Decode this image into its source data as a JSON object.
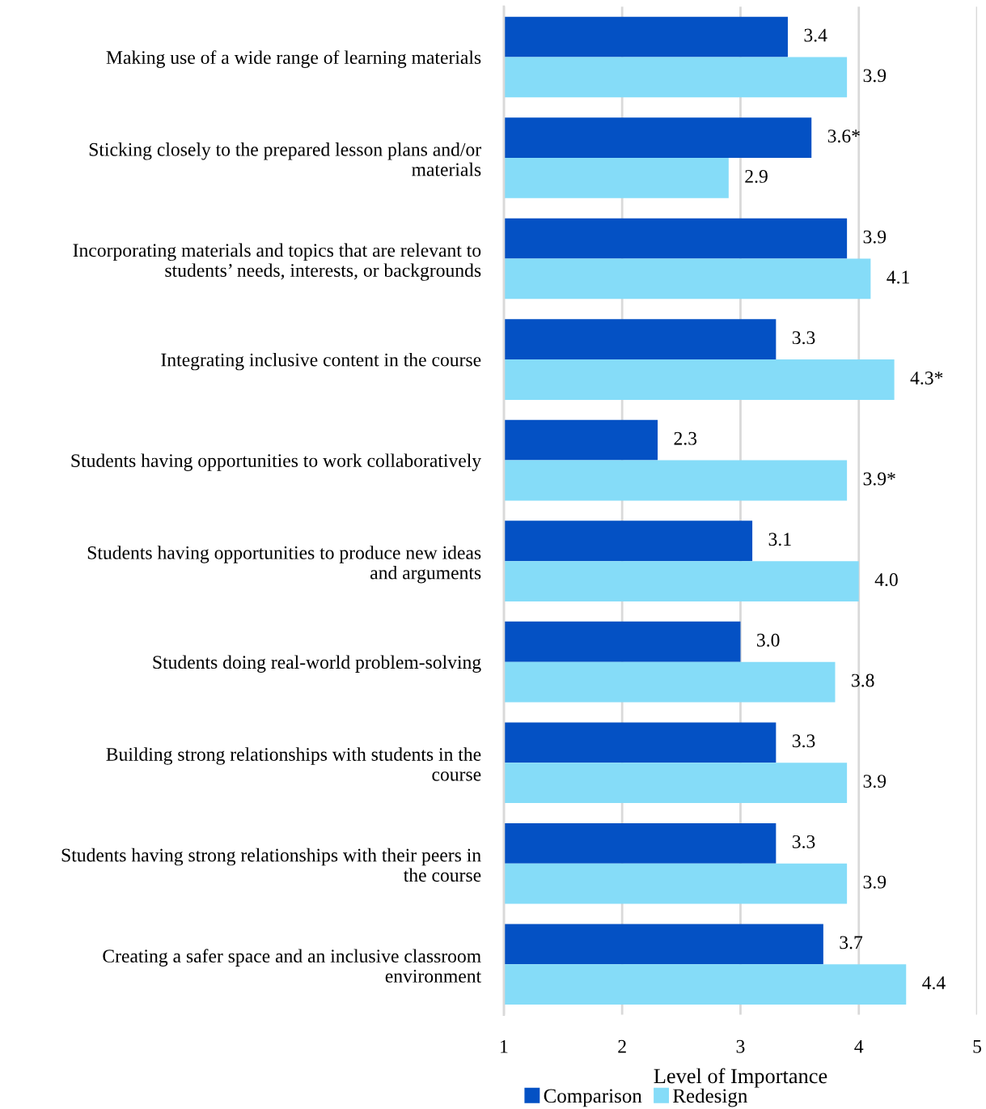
{
  "chart_data": {
    "type": "bar",
    "orientation": "horizontal",
    "xlabel": "Level of Importance",
    "categories": [
      "Making use of a wide range of learning materials",
      "Sticking closely to the prepared lesson plans and/or\nmaterials",
      "Incorporating materials and topics that are relevant to\nstudents’ needs, interests, or backgrounds",
      "Integrating inclusive content in the course",
      "Students having opportunities to work collaboratively",
      "Students having opportunities to produce new ideas\nand arguments",
      "Students doing real-world problem-solving",
      "Building strong relationships with students in the\ncourse",
      "Students having strong relationships with their peers in\nthe course",
      "Creating a safer space and an inclusive classroom\nenvironment"
    ],
    "series": [
      {
        "name": "Comparison",
        "color": "#0451c4",
        "values": [
          3.4,
          3.6,
          3.9,
          3.3,
          2.3,
          3.1,
          3.0,
          3.3,
          3.3,
          3.7
        ],
        "value_labels": [
          "3.4",
          "3.6*",
          "3.9",
          "3.3",
          "2.3",
          "3.1",
          "3.0",
          "3.3",
          "3.3",
          "3.7"
        ]
      },
      {
        "name": "Redesign",
        "color": "#85dcf8",
        "values": [
          3.9,
          2.9,
          4.1,
          4.3,
          3.9,
          4.0,
          3.8,
          3.9,
          3.9,
          4.4
        ],
        "value_labels": [
          "3.9",
          "2.9",
          "4.1",
          "4.3*",
          "3.9*",
          "4.0",
          "3.8",
          "3.9",
          "3.9",
          "4.4"
        ]
      }
    ],
    "xlim": [
      1,
      5
    ],
    "xticks": [
      1,
      2,
      3,
      4,
      5
    ],
    "grid": "x",
    "legend": "bottom"
  }
}
